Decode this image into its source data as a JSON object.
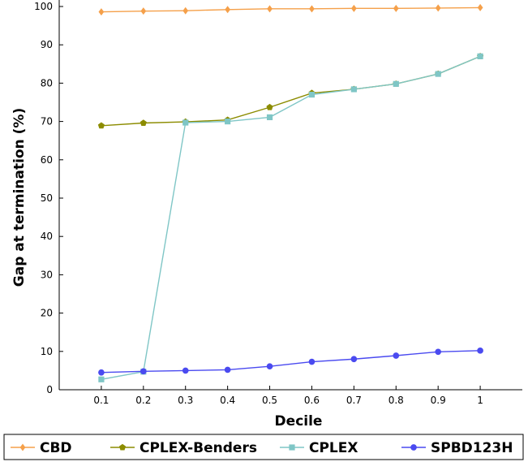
{
  "chart_data": {
    "type": "line",
    "xlabel": "Decile",
    "ylabel": "Gap at termination (%)",
    "x": [
      0.1,
      0.2,
      0.3,
      0.4,
      0.5,
      0.6,
      0.7,
      0.8,
      0.9,
      1
    ],
    "x_tick_labels": [
      "0.1",
      "0.2",
      "0.3",
      "0.4",
      "0.5",
      "0.6",
      "0.7",
      "0.8",
      "0.9",
      "1"
    ],
    "ylim": [
      0,
      100
    ],
    "y_ticks": [
      0,
      10,
      20,
      30,
      40,
      50,
      60,
      70,
      80,
      90,
      100
    ],
    "grid": false,
    "legend_position": "bottom",
    "series": [
      {
        "name": "CBD",
        "color": "#f5a04a",
        "marker": "diamond",
        "values": [
          98.6,
          98.8,
          98.9,
          99.2,
          99.4,
          99.4,
          99.5,
          99.5,
          99.6,
          99.7
        ]
      },
      {
        "name": "CPLEX-Benders",
        "color": "#8c8c00",
        "marker": "pentagon",
        "values": [
          68.9,
          69.6,
          69.9,
          70.4,
          73.7,
          77.4,
          78.4,
          79.8,
          82.4,
          87.0
        ]
      },
      {
        "name": "CPLEX",
        "color": "#7fc6c6",
        "marker": "square",
        "values": [
          2.7,
          4.7,
          69.7,
          70.0,
          71.1,
          77.0,
          78.4,
          79.8,
          82.4,
          87.0
        ]
      },
      {
        "name": "SPBD123H",
        "color": "#4a4af0",
        "marker": "circle",
        "values": [
          4.5,
          4.8,
          5.0,
          5.2,
          6.1,
          7.3,
          8.0,
          8.9,
          9.9,
          10.2
        ]
      }
    ]
  }
}
